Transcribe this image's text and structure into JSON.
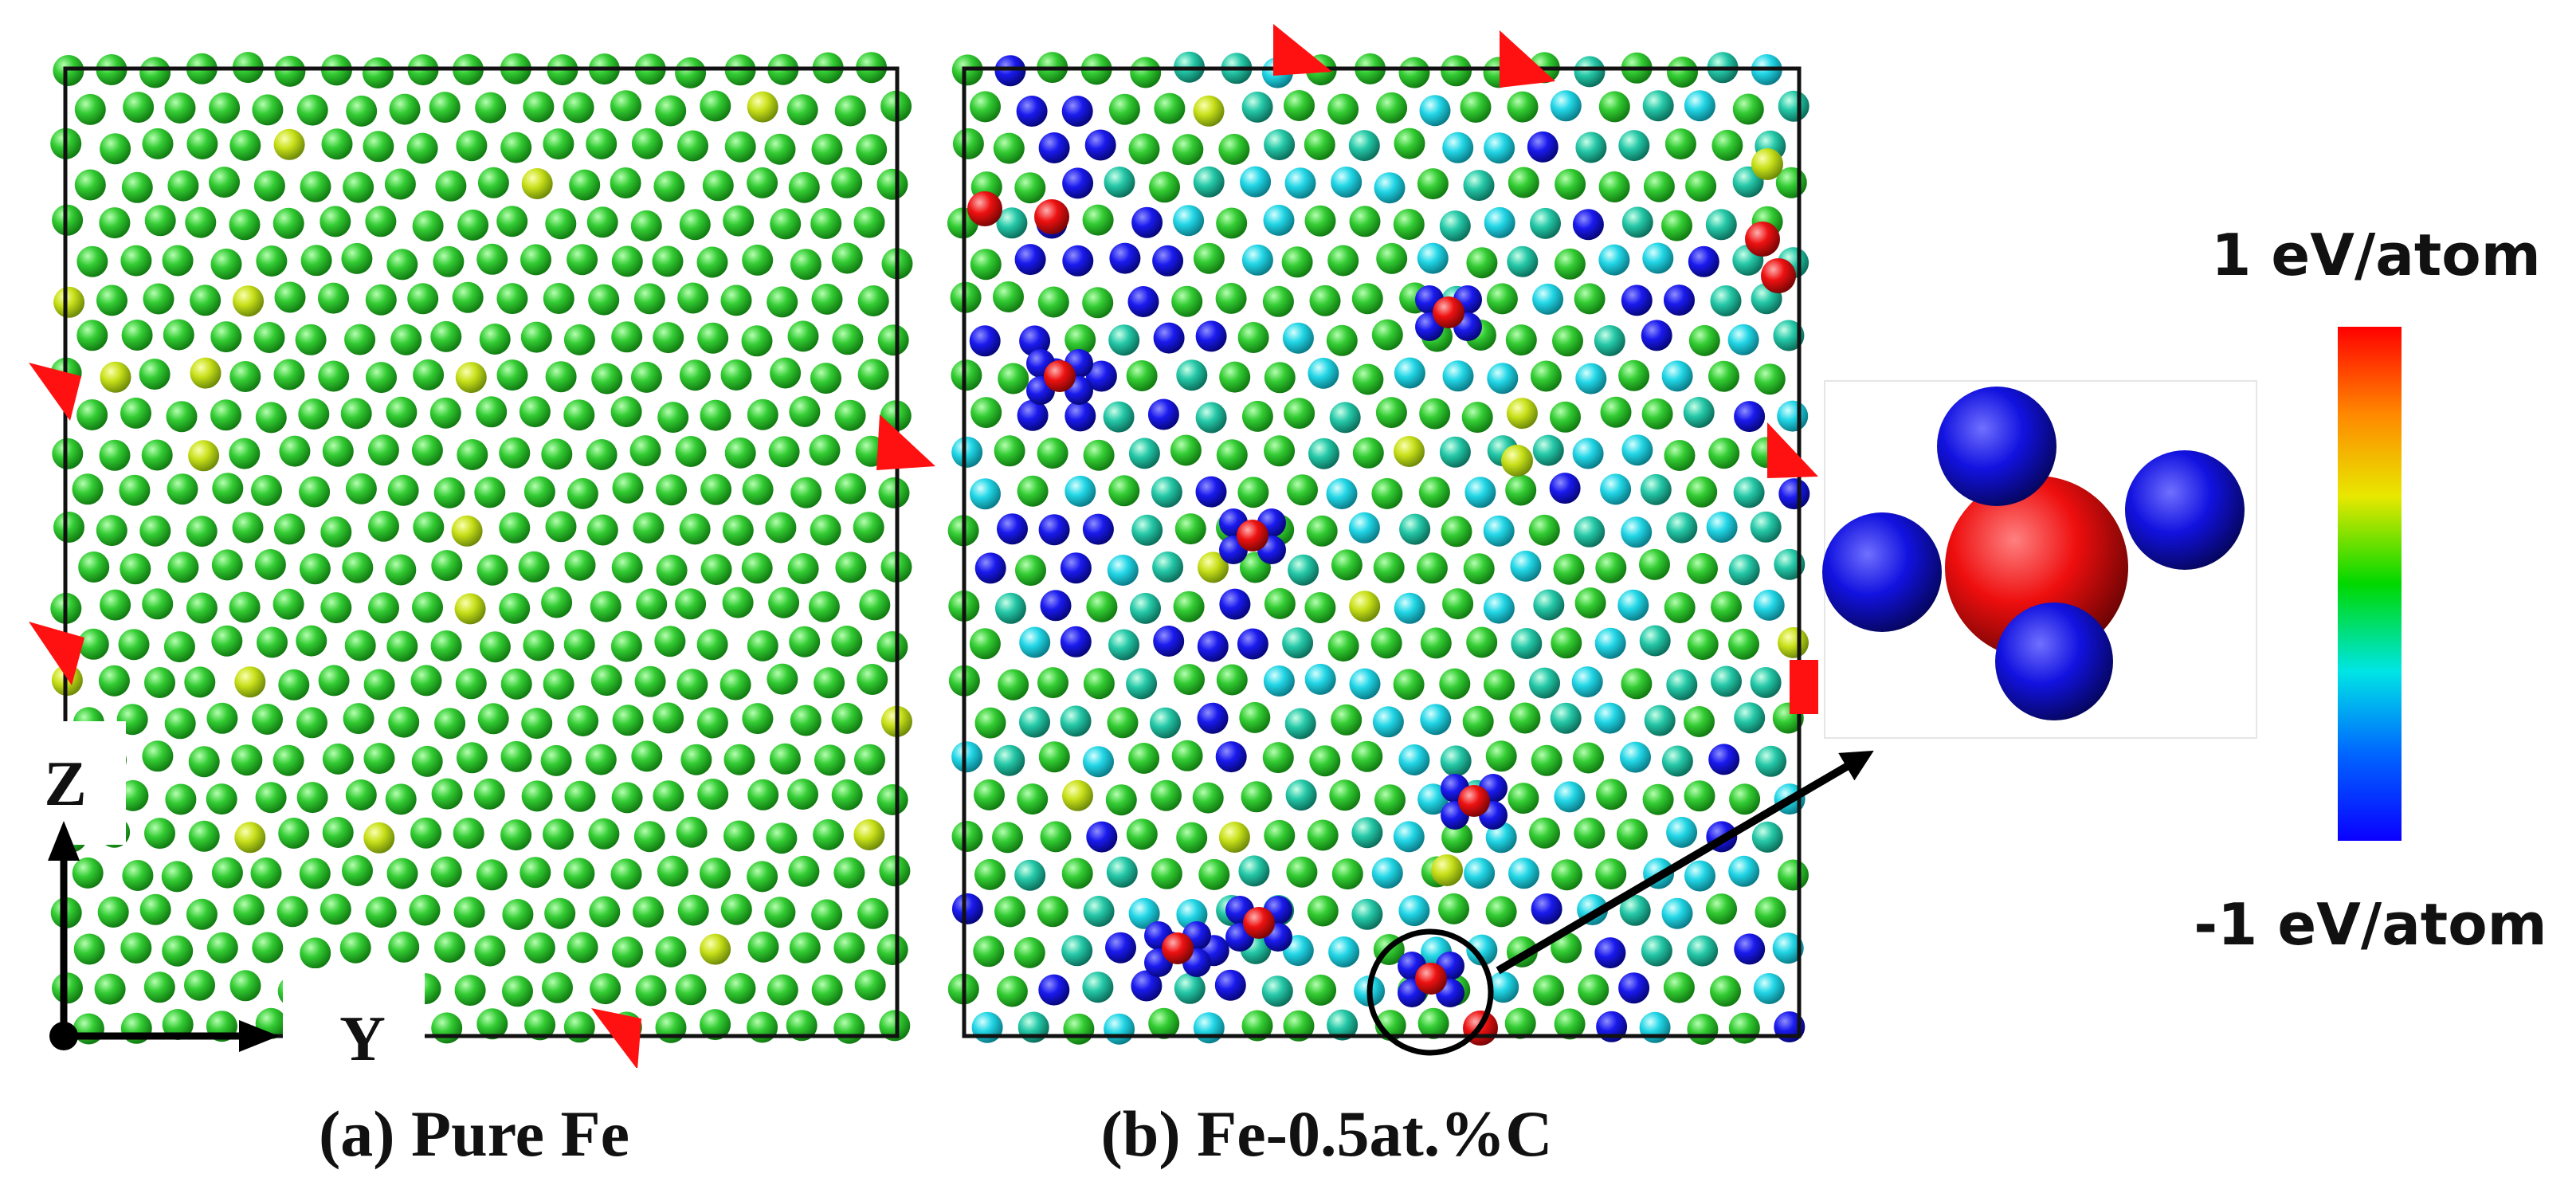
{
  "panels": [
    {
      "id": "a",
      "caption": "(a) Pure Fe"
    },
    {
      "id": "b",
      "caption": "(b) Fe-0.5at.%C"
    }
  ],
  "axes": {
    "vertical": "Z",
    "horizontal": "Y"
  },
  "colorbar": {
    "max_label": "1 eV/atom",
    "min_label": "-1 eV/atom",
    "max_value": 1,
    "min_value": -1,
    "unit": "eV/atom",
    "colors": [
      "#0a00ff",
      "#0066ff",
      "#00e5e5",
      "#00d800",
      "#e8e800",
      "#ff8800",
      "#ff0000"
    ]
  },
  "atom_colors": {
    "fe_pure": "#33cc33",
    "fe_yellowish": "#c8e01a",
    "fe_blue": "#1a1aee",
    "fe_cyan": "#22d6e6",
    "fe_teal": "#25c8a8",
    "carbon": "#ee1111",
    "marker": "#ff1111"
  }
}
